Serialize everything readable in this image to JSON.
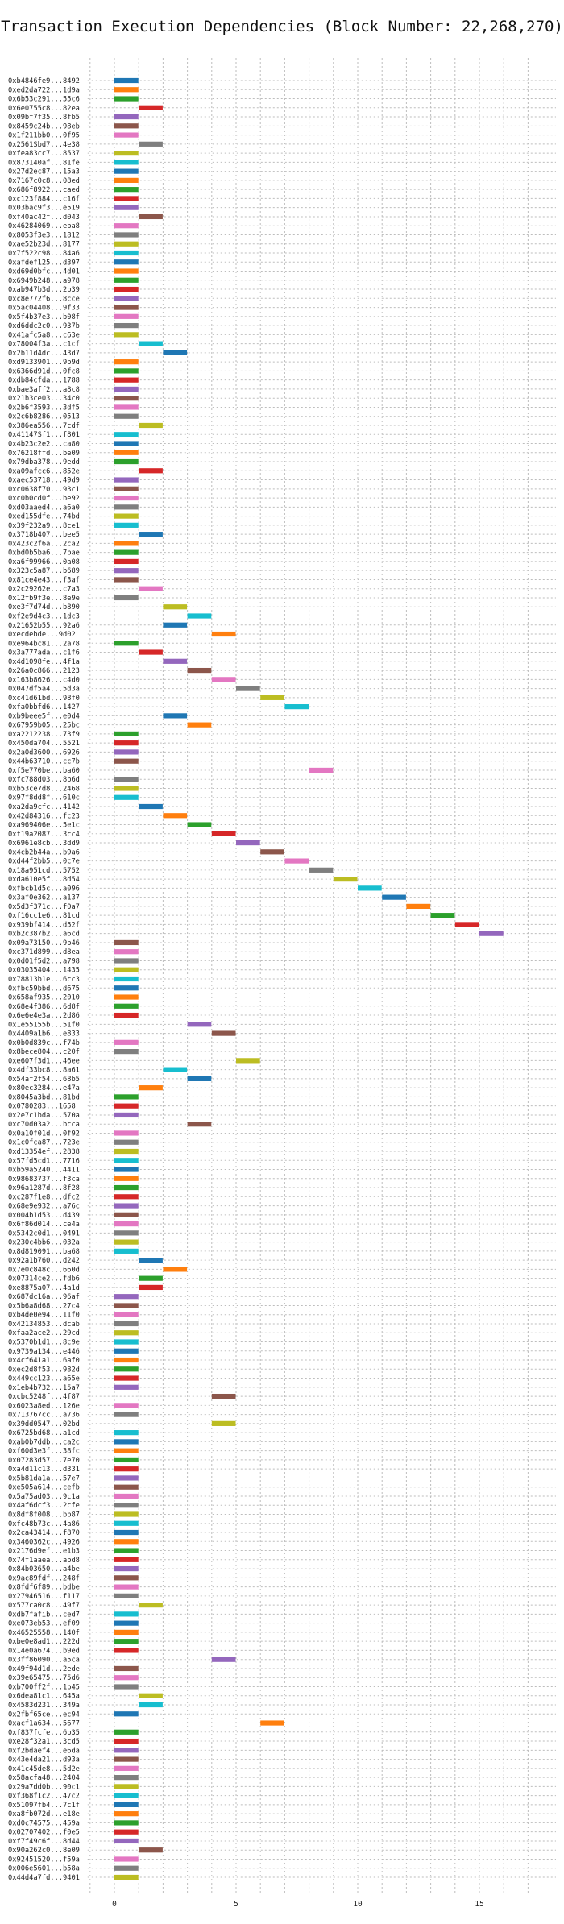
{
  "chart_data": {
    "type": "bar",
    "orientation": "horizontal-gantt",
    "title": "Transaction Execution Dependencies (Block Number: 22,268,270)",
    "xlabel": "",
    "ylabel": "",
    "xlim": [
      -1.5,
      17.5
    ],
    "x_ticks": [
      0,
      5,
      10,
      15
    ],
    "grid": {
      "x": true,
      "y": true,
      "style": "dotted"
    },
    "palette": [
      "#1f77b4",
      "#ff7f0e",
      "#2ca02c",
      "#d62728",
      "#9467bd",
      "#8c564b",
      "#e377c2",
      "#7f7f7f",
      "#bcbd22",
      "#17becf"
    ],
    "transactions": [
      {
        "label": "0xb4846fe9...8492",
        "start": 0,
        "end": 1
      },
      {
        "label": "0xed2da722...1d9a",
        "start": 0,
        "end": 1
      },
      {
        "label": "0x6b53c291...55c6",
        "start": 0,
        "end": 1
      },
      {
        "label": "0x6e0755c8...82ea",
        "start": 1,
        "end": 2
      },
      {
        "label": "0x09bf7f35...8fb5",
        "start": 0,
        "end": 1
      },
      {
        "label": "0x8459c24b...98eb",
        "start": 0,
        "end": 1
      },
      {
        "label": "0x1f211bb0...0f95",
        "start": 0,
        "end": 1
      },
      {
        "label": "0x2561Sbd7...4e38",
        "start": 1,
        "end": 2
      },
      {
        "label": "0xfea83cc7...8537",
        "start": 0,
        "end": 1
      },
      {
        "label": "0x873140af...81fe",
        "start": 0,
        "end": 1
      },
      {
        "label": "0x27d2ec87...15a3",
        "start": 0,
        "end": 1
      },
      {
        "label": "0x7167c0c8...08ed",
        "start": 0,
        "end": 1
      },
      {
        "label": "0x686f8922...caed",
        "start": 0,
        "end": 1
      },
      {
        "label": "0xc123f884...c16f",
        "start": 0,
        "end": 1
      },
      {
        "label": "0x03bac9f3...e519",
        "start": 0,
        "end": 1
      },
      {
        "label": "0xf40ac42f...d043",
        "start": 1,
        "end": 2
      },
      {
        "label": "0x46284069...eba8",
        "start": 0,
        "end": 1
      },
      {
        "label": "0x8053f3e3...1812",
        "start": 0,
        "end": 1
      },
      {
        "label": "0xae52b23d...8177",
        "start": 0,
        "end": 1
      },
      {
        "label": "0x7f522c98...84a6",
        "start": 0,
        "end": 1
      },
      {
        "label": "0xafdef125...d397",
        "start": 0,
        "end": 1
      },
      {
        "label": "0xd69d0bfc...4d01",
        "start": 0,
        "end": 1
      },
      {
        "label": "0x6949b248...a978",
        "start": 0,
        "end": 1
      },
      {
        "label": "0xab947b3d...2b39",
        "start": 0,
        "end": 1
      },
      {
        "label": "0xc8e772f6...8cce",
        "start": 0,
        "end": 1
      },
      {
        "label": "0x5ac04408...9f33",
        "start": 0,
        "end": 1
      },
      {
        "label": "0x5f4b37e3...b08f",
        "start": 0,
        "end": 1
      },
      {
        "label": "0xd6ddc2c0...937b",
        "start": 0,
        "end": 1
      },
      {
        "label": "0x41afc5a8...c63e",
        "start": 0,
        "end": 1
      },
      {
        "label": "0x78004f3a...c1cf",
        "start": 1,
        "end": 2
      },
      {
        "label": "0x2b11d4dc...43d7",
        "start": 2,
        "end": 3
      },
      {
        "label": "0xd9133901...9b9d",
        "start": 0,
        "end": 1
      },
      {
        "label": "0x6366d91d...0fc8",
        "start": 0,
        "end": 1
      },
      {
        "label": "0xdb84cfda...1788",
        "start": 0,
        "end": 1
      },
      {
        "label": "0xbae3aff2...a8c8",
        "start": 0,
        "end": 1
      },
      {
        "label": "0x21b3ce03...34c0",
        "start": 0,
        "end": 1
      },
      {
        "label": "0x2b6f3593...3df5",
        "start": 0,
        "end": 1
      },
      {
        "label": "0x2c6b8286...0513",
        "start": 0,
        "end": 1
      },
      {
        "label": "0x386ea556...7cdf",
        "start": 1,
        "end": 2
      },
      {
        "label": "0x41147Sf1...f801",
        "start": 0,
        "end": 1
      },
      {
        "label": "0x4b23c2e2...ca80",
        "start": 0,
        "end": 1
      },
      {
        "label": "0x76218ffd...be09",
        "start": 0,
        "end": 1
      },
      {
        "label": "0x79dba378...9edd",
        "start": 0,
        "end": 1
      },
      {
        "label": "0xa09afcc6...852e",
        "start": 1,
        "end": 2
      },
      {
        "label": "0xaec53718...49d9",
        "start": 0,
        "end": 1
      },
      {
        "label": "0xc0638f70...93c1",
        "start": 0,
        "end": 1
      },
      {
        "label": "0xc0b0cd0f...be92",
        "start": 0,
        "end": 1
      },
      {
        "label": "0xd03aaed4...a6a0",
        "start": 0,
        "end": 1
      },
      {
        "label": "0xed155dfe...74bd",
        "start": 0,
        "end": 1
      },
      {
        "label": "0x39f232a9...8ce1",
        "start": 0,
        "end": 1
      },
      {
        "label": "0x3718b407...bee5",
        "start": 1,
        "end": 2
      },
      {
        "label": "0x423c2f6a...2ca2",
        "start": 0,
        "end": 1
      },
      {
        "label": "0xbd0b5ba6...7bae",
        "start": 0,
        "end": 1
      },
      {
        "label": "0xa6f99966...0a08",
        "start": 0,
        "end": 1
      },
      {
        "label": "0x323c5a87...b689",
        "start": 0,
        "end": 1
      },
      {
        "label": "0x81ce4e43...f3af",
        "start": 0,
        "end": 1
      },
      {
        "label": "0x2c29262e...c7a3",
        "start": 1,
        "end": 2
      },
      {
        "label": "0x12fb9f3e...8e9e",
        "start": 0,
        "end": 1
      },
      {
        "label": "0xe3f7d74d...b890",
        "start": 2,
        "end": 3
      },
      {
        "label": "0xf2e9d4c3...1dc3",
        "start": 3,
        "end": 4
      },
      {
        "label": "0x21652b55...92a6",
        "start": 2,
        "end": 3
      },
      {
        "label": "0xecdebde...9d02",
        "start": 4,
        "end": 5
      },
      {
        "label": "0xe964bc81...2a78",
        "start": 0,
        "end": 1
      },
      {
        "label": "0x3a777ada...c1f6",
        "start": 1,
        "end": 2
      },
      {
        "label": "0x4d1098fe...4f1a",
        "start": 2,
        "end": 3
      },
      {
        "label": "0x26a0c866...2123",
        "start": 3,
        "end": 4
      },
      {
        "label": "0x163b8626...c4d0",
        "start": 4,
        "end": 5
      },
      {
        "label": "0x047df5a4...5d3a",
        "start": 5,
        "end": 6
      },
      {
        "label": "0xc41d61bd...98f0",
        "start": 6,
        "end": 7
      },
      {
        "label": "0xfa0bbfd6...1427",
        "start": 7,
        "end": 8
      },
      {
        "label": "0xb9beee5f...e0d4",
        "start": 2,
        "end": 3
      },
      {
        "label": "0x67959b05...25bc",
        "start": 3,
        "end": 4
      },
      {
        "label": "0xa2212238...73f9",
        "start": 0,
        "end": 1
      },
      {
        "label": "0x450da704...5521",
        "start": 0,
        "end": 1
      },
      {
        "label": "0x2a0d3600...6926",
        "start": 0,
        "end": 1
      },
      {
        "label": "0x44b63710...cc7b",
        "start": 0,
        "end": 1
      },
      {
        "label": "0xf5e770be...ba60",
        "start": 8,
        "end": 9
      },
      {
        "label": "0xfc788d03...8b6d",
        "start": 0,
        "end": 1
      },
      {
        "label": "0xb53ce7d8...2468",
        "start": 0,
        "end": 1
      },
      {
        "label": "0x97f8dd8f...610c",
        "start": 0,
        "end": 1
      },
      {
        "label": "0xa2da9cfc...4142",
        "start": 1,
        "end": 2
      },
      {
        "label": "0x42d84316...fc23",
        "start": 2,
        "end": 3
      },
      {
        "label": "0xa969406e...5e1c",
        "start": 3,
        "end": 4
      },
      {
        "label": "0xf19a2087...3cc4",
        "start": 4,
        "end": 5
      },
      {
        "label": "0x6961e8cb...3dd9",
        "start": 5,
        "end": 6
      },
      {
        "label": "0x4cb2b44a...b9a6",
        "start": 6,
        "end": 7
      },
      {
        "label": "0xd44f2bb5...0c7e",
        "start": 7,
        "end": 8
      },
      {
        "label": "0x18a951cd...5752",
        "start": 8,
        "end": 9
      },
      {
        "label": "0xda610e5f...8d54",
        "start": 9,
        "end": 10
      },
      {
        "label": "0xfbcb1d5c...a096",
        "start": 10,
        "end": 11
      },
      {
        "label": "0x3af0e362...a137",
        "start": 11,
        "end": 12
      },
      {
        "label": "0x5d3f371c...f0a7",
        "start": 12,
        "end": 13
      },
      {
        "label": "0xf16cc1e6...81cd",
        "start": 13,
        "end": 14
      },
      {
        "label": "0x939bf414...d52f",
        "start": 14,
        "end": 15
      },
      {
        "label": "0xb2c387b2...a6cd",
        "start": 15,
        "end": 16
      },
      {
        "label": "0x09a73150...9b46",
        "start": 0,
        "end": 1
      },
      {
        "label": "0xc371d899...d8ea",
        "start": 0,
        "end": 1
      },
      {
        "label": "0x0d01f5d2...a798",
        "start": 0,
        "end": 1
      },
      {
        "label": "0x03035404...1435",
        "start": 0,
        "end": 1
      },
      {
        "label": "0x78813b1e...6cc3",
        "start": 0,
        "end": 1
      },
      {
        "label": "0xfbc59bbd...d675",
        "start": 0,
        "end": 1
      },
      {
        "label": "0x658af935...2010",
        "start": 0,
        "end": 1
      },
      {
        "label": "0x68e4f386...6d8f",
        "start": 0,
        "end": 1
      },
      {
        "label": "0x6e6e4e3a...2d86",
        "start": 0,
        "end": 1
      },
      {
        "label": "0x1e55155b...51f0",
        "start": 3,
        "end": 4
      },
      {
        "label": "0x4409a1b6...e833",
        "start": 4,
        "end": 5
      },
      {
        "label": "0x0b0d839c...f74b",
        "start": 0,
        "end": 1
      },
      {
        "label": "0x8bece804...c20f",
        "start": 0,
        "end": 1
      },
      {
        "label": "0xe607f3d1...46ee",
        "start": 5,
        "end": 6
      },
      {
        "label": "0x4df33bc8...8a61",
        "start": 2,
        "end": 3
      },
      {
        "label": "0x54af2f54...68b5",
        "start": 3,
        "end": 4
      },
      {
        "label": "0x80ec3284...e47a",
        "start": 1,
        "end": 2
      },
      {
        "label": "0x8045a3bd...81bd",
        "start": 0,
        "end": 1
      },
      {
        "label": "0x0780283...1658",
        "start": 0,
        "end": 1
      },
      {
        "label": "0x2e7c1bda...570a",
        "start": 0,
        "end": 1
      },
      {
        "label": "0xc70d03a2...bcca",
        "start": 3,
        "end": 4
      },
      {
        "label": "0x0a10f01d...0f92",
        "start": 0,
        "end": 1
      },
      {
        "label": "0x1c0fca87...723e",
        "start": 0,
        "end": 1
      },
      {
        "label": "0xd13354ef...2838",
        "start": 0,
        "end": 1
      },
      {
        "label": "0x57fd5cd1...7716",
        "start": 0,
        "end": 1
      },
      {
        "label": "0xb59a5240...4411",
        "start": 0,
        "end": 1
      },
      {
        "label": "0x98683737...f3ca",
        "start": 0,
        "end": 1
      },
      {
        "label": "0x96a1287d...8f28",
        "start": 0,
        "end": 1
      },
      {
        "label": "0xc287f1e8...dfc2",
        "start": 0,
        "end": 1
      },
      {
        "label": "0x68e9e932...a76c",
        "start": 0,
        "end": 1
      },
      {
        "label": "0x004b1d53...d439",
        "start": 0,
        "end": 1
      },
      {
        "label": "0x6f86d014...ce4a",
        "start": 0,
        "end": 1
      },
      {
        "label": "0x5342c0d1...0491",
        "start": 0,
        "end": 1
      },
      {
        "label": "0x230c4bb6...032a",
        "start": 0,
        "end": 1
      },
      {
        "label": "0x8d819091...ba68",
        "start": 0,
        "end": 1
      },
      {
        "label": "0x92a1b760...d242",
        "start": 1,
        "end": 2
      },
      {
        "label": "0x7e0c848c...660d",
        "start": 2,
        "end": 3
      },
      {
        "label": "0x07314ce2...fdb6",
        "start": 1,
        "end": 2
      },
      {
        "label": "0xe8875a07...4a1d",
        "start": 1,
        "end": 2
      },
      {
        "label": "0x687dc16a...96af",
        "start": 0,
        "end": 1
      },
      {
        "label": "0x5b6a8d68...27c4",
        "start": 0,
        "end": 1
      },
      {
        "label": "0xb4de0e94...11f0",
        "start": 0,
        "end": 1
      },
      {
        "label": "0x42134853...dcab",
        "start": 0,
        "end": 1
      },
      {
        "label": "0xfaa2ace2...29cd",
        "start": 0,
        "end": 1
      },
      {
        "label": "0x5370b1d1...8c9e",
        "start": 0,
        "end": 1
      },
      {
        "label": "0x9739a134...e446",
        "start": 0,
        "end": 1
      },
      {
        "label": "0x4cf641a1...6af0",
        "start": 0,
        "end": 1
      },
      {
        "label": "0xec2d8f53...982d",
        "start": 0,
        "end": 1
      },
      {
        "label": "0x449cc123...a65e",
        "start": 0,
        "end": 1
      },
      {
        "label": "0x1eb4b732...15a7",
        "start": 0,
        "end": 1
      },
      {
        "label": "0xcbc5248f...4f87",
        "start": 4,
        "end": 5
      },
      {
        "label": "0x6023a8ed...126e",
        "start": 0,
        "end": 1
      },
      {
        "label": "0x713767cc...a736",
        "start": 0,
        "end": 1
      },
      {
        "label": "0x39dd0547...02bd",
        "start": 4,
        "end": 5
      },
      {
        "label": "0x6725bd68...a1cd",
        "start": 0,
        "end": 1
      },
      {
        "label": "0xab0b7ddb...ca2c",
        "start": 0,
        "end": 1
      },
      {
        "label": "0xf60d3e3f...38fc",
        "start": 0,
        "end": 1
      },
      {
        "label": "0x07283d57...7e70",
        "start": 0,
        "end": 1
      },
      {
        "label": "0xa4d11c13...d331",
        "start": 0,
        "end": 1
      },
      {
        "label": "0x5b81da1a...57e7",
        "start": 0,
        "end": 1
      },
      {
        "label": "0xe505a614...cefb",
        "start": 0,
        "end": 1
      },
      {
        "label": "0x5a75ad03...9c1a",
        "start": 0,
        "end": 1
      },
      {
        "label": "0x4af6dcf3...2cfe",
        "start": 0,
        "end": 1
      },
      {
        "label": "0x8df8f008...bb87",
        "start": 0,
        "end": 1
      },
      {
        "label": "0xfc48b73c...4a86",
        "start": 0,
        "end": 1
      },
      {
        "label": "0x2ca43414...f870",
        "start": 0,
        "end": 1
      },
      {
        "label": "0x3460362c...4926",
        "start": 0,
        "end": 1
      },
      {
        "label": "0x2176d9ef...e1b3",
        "start": 0,
        "end": 1
      },
      {
        "label": "0x74f1aaea...abd8",
        "start": 0,
        "end": 1
      },
      {
        "label": "0x84b03650...a4be",
        "start": 0,
        "end": 1
      },
      {
        "label": "0x9ac89fdf...248f",
        "start": 0,
        "end": 1
      },
      {
        "label": "0x8fdf6f89...bdbe",
        "start": 0,
        "end": 1
      },
      {
        "label": "0x27946516...f117",
        "start": 0,
        "end": 1
      },
      {
        "label": "0x577ca0c8...49f7",
        "start": 1,
        "end": 2
      },
      {
        "label": "0xdb7fafib...ced7",
        "start": 0,
        "end": 1
      },
      {
        "label": "0xe073eb53...ef09",
        "start": 0,
        "end": 1
      },
      {
        "label": "0x46525558...140f",
        "start": 0,
        "end": 1
      },
      {
        "label": "0xbe0e8ad1...222d",
        "start": 0,
        "end": 1
      },
      {
        "label": "0x14e0a674...b9ed",
        "start": 0,
        "end": 1
      },
      {
        "label": "0x3ff86090...a5ca",
        "start": 4,
        "end": 5
      },
      {
        "label": "0x49f94d1d...2ede",
        "start": 0,
        "end": 1
      },
      {
        "label": "0x39e65475...75d6",
        "start": 0,
        "end": 1
      },
      {
        "label": "0xb700ff2f...1b45",
        "start": 0,
        "end": 1
      },
      {
        "label": "0x6dea81c1...645a",
        "start": 1,
        "end": 2
      },
      {
        "label": "0x4583d231...349a",
        "start": 1,
        "end": 2
      },
      {
        "label": "0x2fbf65ce...ec94",
        "start": 0,
        "end": 1
      },
      {
        "label": "0xacf1a634...5677",
        "start": 6,
        "end": 7
      },
      {
        "label": "0xf837fcfe...6b35",
        "start": 0,
        "end": 1
      },
      {
        "label": "0xe28f32a1...3cd5",
        "start": 0,
        "end": 1
      },
      {
        "label": "0xf2bdaef4...e6da",
        "start": 0,
        "end": 1
      },
      {
        "label": "0x43e4da21...d93a",
        "start": 0,
        "end": 1
      },
      {
        "label": "0x41c45de8...5d2e",
        "start": 0,
        "end": 1
      },
      {
        "label": "0x58acfa48...2404",
        "start": 0,
        "end": 1
      },
      {
        "label": "0x29a7dd0b...90c1",
        "start": 0,
        "end": 1
      },
      {
        "label": "0xf368f1c2...47c2",
        "start": 0,
        "end": 1
      },
      {
        "label": "0x51097fb4...7c1f",
        "start": 0,
        "end": 1
      },
      {
        "label": "0xa8fb072d...e18e",
        "start": 0,
        "end": 1
      },
      {
        "label": "0xd0c74575...459a",
        "start": 0,
        "end": 1
      },
      {
        "label": "0x02707402...f0e5",
        "start": 0,
        "end": 1
      },
      {
        "label": "0xf7f49c6f...8d44",
        "start": 0,
        "end": 1
      },
      {
        "label": "0x90a262c0...8e09",
        "start": 1,
        "end": 2
      },
      {
        "label": "0x92451520...f59a",
        "start": 0,
        "end": 1
      },
      {
        "label": "0x006e5601...b58a",
        "start": 0,
        "end": 1
      },
      {
        "label": "0x44d4a7fd...9401",
        "start": 0,
        "end": 1
      }
    ]
  }
}
